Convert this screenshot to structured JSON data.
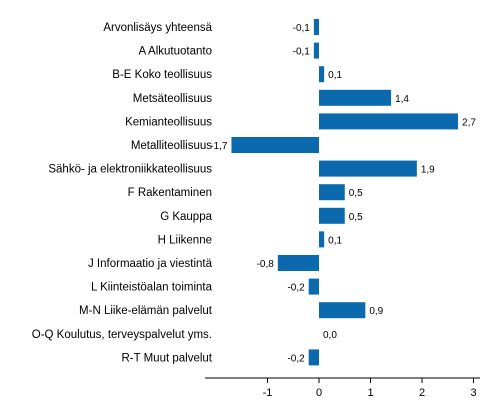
{
  "chart_data": {
    "type": "bar",
    "orientation": "horizontal",
    "title": "",
    "xlabel": "",
    "ylabel": "",
    "categories": [
      "Arvonlisäys yhteensä",
      "A Alkutuotanto",
      "B-E Koko teollisuus",
      "Metsäteollisuus",
      "Kemianteollisuus",
      "Metalliteollisuus",
      "Sähkö- ja elektroniikkateollisuus",
      "F Rakentaminen",
      "G Kauppa",
      "H Liikenne",
      "J Informaatio ja viestintä",
      "L Kiinteistöalan toiminta",
      "M-N Liike-elämän palvelut",
      "O-Q Koulutus, terveyspalvelut yms.",
      "R-T Muut palvelut"
    ],
    "values": [
      -0.1,
      -0.1,
      0.1,
      1.4,
      2.7,
      -1.7,
      1.9,
      0.5,
      0.5,
      0.1,
      -0.8,
      -0.2,
      0.9,
      0.0,
      -0.2
    ],
    "value_labels": [
      "-0,1",
      "-0,1",
      "0,1",
      "1,4",
      "2,7",
      "-1,7",
      "1,9",
      "0,5",
      "0,5",
      "0,1",
      "-0,8",
      "-0,2",
      "0,9",
      "0,0",
      "-0,2"
    ],
    "xlim": [
      -2.2,
      3.1
    ],
    "xticks": [
      -1,
      0,
      1,
      2,
      3
    ],
    "xtick_labels": [
      "-1",
      "0",
      "1",
      "2",
      "3"
    ],
    "bar_color": "#0a6aad",
    "grid": false
  }
}
